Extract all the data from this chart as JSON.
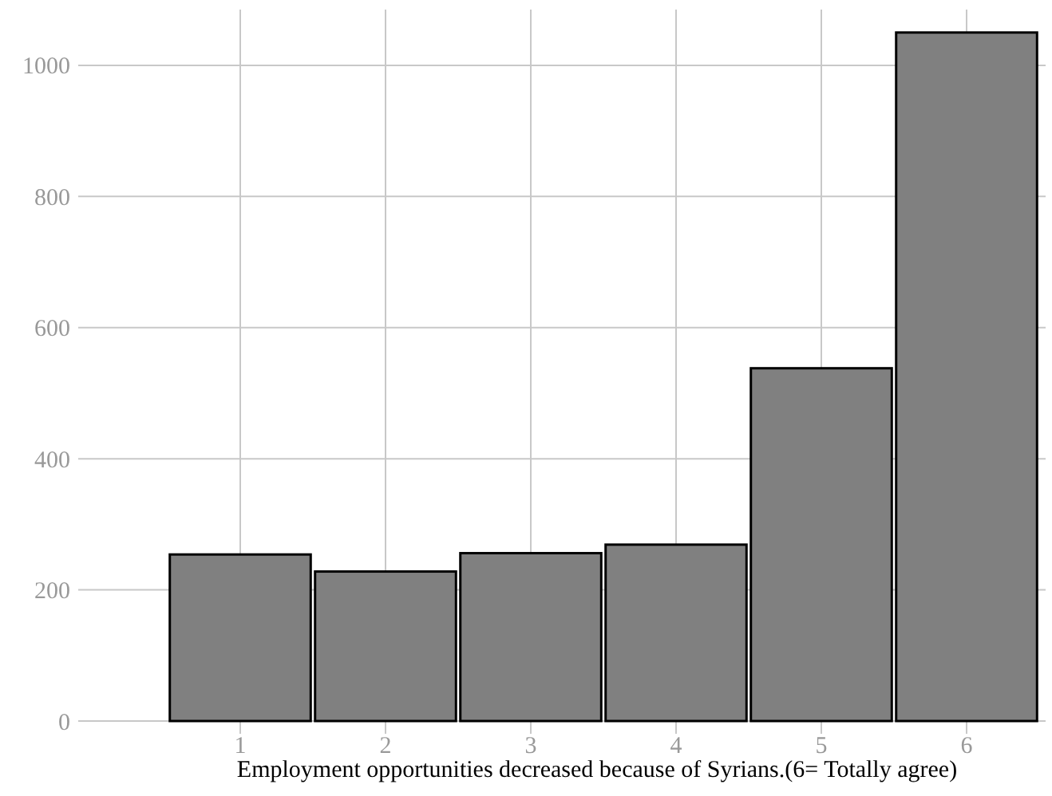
{
  "chart_data": {
    "type": "bar",
    "xlabel": "Employment opportunities decreased because of Syrians.(6= Totally agree)",
    "categories": [
      "1",
      "2",
      "3",
      "4",
      "5",
      "6"
    ],
    "values": [
      254,
      228,
      256,
      269,
      538,
      1050
    ],
    "color": "#808080",
    "ylim": [
      0,
      1085
    ],
    "yticks": [
      0,
      200,
      400,
      600,
      800,
      1000
    ],
    "grid": true
  }
}
